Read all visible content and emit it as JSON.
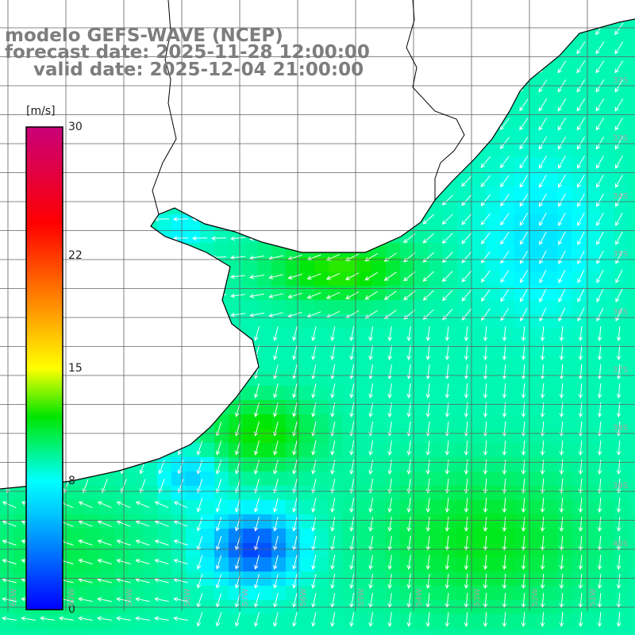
{
  "titles": {
    "model": "modelo GEFS-WAVE (NCEP)",
    "forecast": "forecast date: 2025-11-28 12:00:00",
    "valid": "valid date: 2025-12-04 21:00:00"
  },
  "colorbar": {
    "unit": "[m/s]",
    "ticks": [
      {
        "value": 30,
        "label": "30"
      },
      {
        "value": 22,
        "label": "22"
      },
      {
        "value": 15,
        "label": "15"
      },
      {
        "value": 8,
        "label": "8"
      },
      {
        "value": 0,
        "label": "0"
      }
    ],
    "range": [
      0,
      30
    ],
    "stops": [
      {
        "value": 0,
        "color": "#0000ff"
      },
      {
        "value": 6,
        "color": "#00c8ff"
      },
      {
        "value": 8,
        "color": "#00ffff"
      },
      {
        "value": 12,
        "color": "#00e600"
      },
      {
        "value": 15,
        "color": "#ffff00"
      },
      {
        "value": 19,
        "color": "#ff8c00"
      },
      {
        "value": 24,
        "color": "#ff0000"
      },
      {
        "value": 30,
        "color": "#c8007a"
      }
    ]
  },
  "axes": {
    "lon_labels": [
      "61W",
      "60W",
      "59W",
      "58W",
      "57W",
      "56W",
      "55W",
      "54W",
      "53W",
      "52W",
      "51W"
    ],
    "lat_labels": [
      "32S",
      "33S",
      "34S",
      "35S",
      "36S",
      "37S",
      "38S",
      "39S",
      "40S"
    ]
  },
  "wind_field": {
    "description_units": "m/s",
    "regions": [
      {
        "area": "north-east coast (Brazil shelf)",
        "speed": 8
      },
      {
        "area": "Rio de la Plata mouth",
        "speed": 12
      },
      {
        "area": "central open ocean",
        "speed": 9
      },
      {
        "area": "south-west coastal core",
        "speed": 2
      },
      {
        "area": "south-east open ocean",
        "speed": 11
      }
    ]
  }
}
